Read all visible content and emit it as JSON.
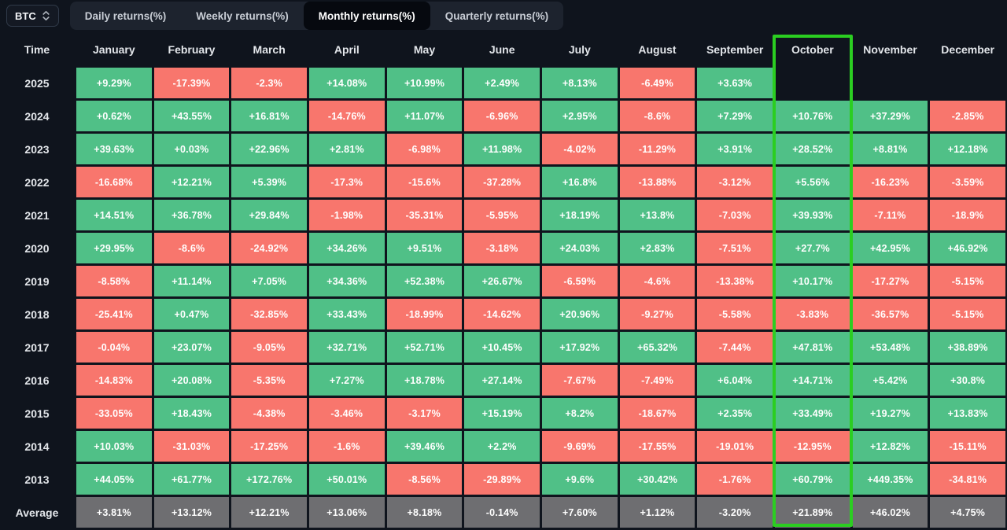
{
  "toolbar": {
    "symbol": "BTC",
    "tabs": [
      {
        "label": "Daily returns(%)",
        "active": false
      },
      {
        "label": "Weekly returns(%)",
        "active": false
      },
      {
        "label": "Monthly returns(%)",
        "active": true
      },
      {
        "label": "Quarterly returns(%)",
        "active": false
      }
    ]
  },
  "table": {
    "time_header": "Time",
    "columns": [
      "January",
      "February",
      "March",
      "April",
      "May",
      "June",
      "July",
      "August",
      "September",
      "October",
      "November",
      "December"
    ],
    "highlighted_column": "October",
    "rows": [
      {
        "label": "2025",
        "values": [
          "+9.29%",
          "-17.39%",
          "-2.3%",
          "+14.08%",
          "+10.99%",
          "+2.49%",
          "+8.13%",
          "-6.49%",
          "+3.63%",
          "",
          "",
          ""
        ]
      },
      {
        "label": "2024",
        "values": [
          "+0.62%",
          "+43.55%",
          "+16.81%",
          "-14.76%",
          "+11.07%",
          "-6.96%",
          "+2.95%",
          "-8.6%",
          "+7.29%",
          "+10.76%",
          "+37.29%",
          "-2.85%"
        ]
      },
      {
        "label": "2023",
        "values": [
          "+39.63%",
          "+0.03%",
          "+22.96%",
          "+2.81%",
          "-6.98%",
          "+11.98%",
          "-4.02%",
          "-11.29%",
          "+3.91%",
          "+28.52%",
          "+8.81%",
          "+12.18%"
        ]
      },
      {
        "label": "2022",
        "values": [
          "-16.68%",
          "+12.21%",
          "+5.39%",
          "-17.3%",
          "-15.6%",
          "-37.28%",
          "+16.8%",
          "-13.88%",
          "-3.12%",
          "+5.56%",
          "-16.23%",
          "-3.59%"
        ]
      },
      {
        "label": "2021",
        "values": [
          "+14.51%",
          "+36.78%",
          "+29.84%",
          "-1.98%",
          "-35.31%",
          "-5.95%",
          "+18.19%",
          "+13.8%",
          "-7.03%",
          "+39.93%",
          "-7.11%",
          "-18.9%"
        ]
      },
      {
        "label": "2020",
        "values": [
          "+29.95%",
          "-8.6%",
          "-24.92%",
          "+34.26%",
          "+9.51%",
          "-3.18%",
          "+24.03%",
          "+2.83%",
          "-7.51%",
          "+27.7%",
          "+42.95%",
          "+46.92%"
        ]
      },
      {
        "label": "2019",
        "values": [
          "-8.58%",
          "+11.14%",
          "+7.05%",
          "+34.36%",
          "+52.38%",
          "+26.67%",
          "-6.59%",
          "-4.6%",
          "-13.38%",
          "+10.17%",
          "-17.27%",
          "-5.15%"
        ]
      },
      {
        "label": "2018",
        "values": [
          "-25.41%",
          "+0.47%",
          "-32.85%",
          "+33.43%",
          "-18.99%",
          "-14.62%",
          "+20.96%",
          "-9.27%",
          "-5.58%",
          "-3.83%",
          "-36.57%",
          "-5.15%"
        ]
      },
      {
        "label": "2017",
        "values": [
          "-0.04%",
          "+23.07%",
          "-9.05%",
          "+32.71%",
          "+52.71%",
          "+10.45%",
          "+17.92%",
          "+65.32%",
          "-7.44%",
          "+47.81%",
          "+53.48%",
          "+38.89%"
        ]
      },
      {
        "label": "2016",
        "values": [
          "-14.83%",
          "+20.08%",
          "-5.35%",
          "+7.27%",
          "+18.78%",
          "+27.14%",
          "-7.67%",
          "-7.49%",
          "+6.04%",
          "+14.71%",
          "+5.42%",
          "+30.8%"
        ]
      },
      {
        "label": "2015",
        "values": [
          "-33.05%",
          "+18.43%",
          "-4.38%",
          "-3.46%",
          "-3.17%",
          "+15.19%",
          "+8.2%",
          "-18.67%",
          "+2.35%",
          "+33.49%",
          "+19.27%",
          "+13.83%"
        ]
      },
      {
        "label": "2014",
        "values": [
          "+10.03%",
          "-31.03%",
          "-17.25%",
          "-1.6%",
          "+39.46%",
          "+2.2%",
          "-9.69%",
          "-17.55%",
          "-19.01%",
          "-12.95%",
          "+12.82%",
          "-15.11%"
        ]
      },
      {
        "label": "2013",
        "values": [
          "+44.05%",
          "+61.77%",
          "+172.76%",
          "+50.01%",
          "-8.56%",
          "-29.89%",
          "+9.6%",
          "+30.42%",
          "-1.76%",
          "+60.79%",
          "+449.35%",
          "-34.81%"
        ]
      },
      {
        "label": "Average",
        "values": [
          "+3.81%",
          "+13.12%",
          "+12.21%",
          "+13.06%",
          "+8.18%",
          "-0.14%",
          "+7.60%",
          "+1.12%",
          "-3.20%",
          "+21.89%",
          "+46.02%",
          "+4.75%"
        ]
      }
    ]
  },
  "chart_data": {
    "type": "heatmap",
    "title": "BTC Monthly returns(%)",
    "x_categories": [
      "January",
      "February",
      "March",
      "April",
      "May",
      "June",
      "July",
      "August",
      "September",
      "October",
      "November",
      "December"
    ],
    "y_categories": [
      "2025",
      "2024",
      "2023",
      "2022",
      "2021",
      "2020",
      "2019",
      "2018",
      "2017",
      "2016",
      "2015",
      "2014",
      "2013",
      "Average"
    ],
    "values": [
      [
        9.29,
        -17.39,
        -2.3,
        14.08,
        10.99,
        2.49,
        8.13,
        -6.49,
        3.63,
        null,
        null,
        null
      ],
      [
        0.62,
        43.55,
        16.81,
        -14.76,
        11.07,
        -6.96,
        2.95,
        -8.6,
        7.29,
        10.76,
        37.29,
        -2.85
      ],
      [
        39.63,
        0.03,
        22.96,
        2.81,
        -6.98,
        11.98,
        -4.02,
        -11.29,
        3.91,
        28.52,
        8.81,
        12.18
      ],
      [
        -16.68,
        12.21,
        5.39,
        -17.3,
        -15.6,
        -37.28,
        16.8,
        -13.88,
        -3.12,
        5.56,
        -16.23,
        -3.59
      ],
      [
        14.51,
        36.78,
        29.84,
        -1.98,
        -35.31,
        -5.95,
        18.19,
        13.8,
        -7.03,
        39.93,
        -7.11,
        -18.9
      ],
      [
        29.95,
        -8.6,
        -24.92,
        34.26,
        9.51,
        -3.18,
        24.03,
        2.83,
        -7.51,
        27.7,
        42.95,
        46.92
      ],
      [
        -8.58,
        11.14,
        7.05,
        34.36,
        52.38,
        26.67,
        -6.59,
        -4.6,
        -13.38,
        10.17,
        -17.27,
        -5.15
      ],
      [
        -25.41,
        0.47,
        -32.85,
        33.43,
        -18.99,
        -14.62,
        20.96,
        -9.27,
        -5.58,
        -3.83,
        -36.57,
        -5.15
      ],
      [
        -0.04,
        23.07,
        -9.05,
        32.71,
        52.71,
        10.45,
        17.92,
        65.32,
        -7.44,
        47.81,
        53.48,
        38.89
      ],
      [
        -14.83,
        20.08,
        -5.35,
        7.27,
        18.78,
        27.14,
        -7.67,
        -7.49,
        6.04,
        14.71,
        5.42,
        30.8
      ],
      [
        -33.05,
        18.43,
        -4.38,
        -3.46,
        -3.17,
        15.19,
        8.2,
        -18.67,
        2.35,
        33.49,
        19.27,
        13.83
      ],
      [
        10.03,
        -31.03,
        -17.25,
        -1.6,
        39.46,
        2.2,
        -9.69,
        -17.55,
        -19.01,
        -12.95,
        12.82,
        -15.11
      ],
      [
        44.05,
        61.77,
        172.76,
        50.01,
        -8.56,
        -29.89,
        9.6,
        30.42,
        -1.76,
        60.79,
        449.35,
        -34.81
      ],
      [
        3.81,
        13.12,
        12.21,
        13.06,
        8.18,
        -0.14,
        7.6,
        1.12,
        -3.2,
        21.89,
        46.02,
        4.75
      ]
    ],
    "highlighted_column": "October",
    "legend_position": "none",
    "grid": false
  },
  "colors": {
    "positive": "#50c087",
    "negative": "#f8766d",
    "average_row": "#6e6e71",
    "highlight_border": "#2bce21",
    "background": "#0f141d",
    "active_tab_background": "#06090f"
  }
}
